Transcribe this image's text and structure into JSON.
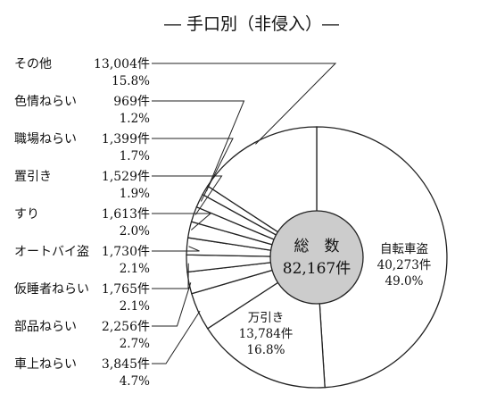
{
  "chart_data": {
    "type": "pie",
    "title": "― 手口別（非侵入）―",
    "center_label": {
      "heading": "総　数",
      "total": "82,167件"
    },
    "slices": [
      {
        "name": "自転車盗",
        "count": "40,273件",
        "percent": "49.0%",
        "value": 49.0
      },
      {
        "name": "万引き",
        "count": "13,784件",
        "percent": "16.8%",
        "value": 16.8
      },
      {
        "name": "車上ねらい",
        "count": "3,845件",
        "percent": "4.7%",
        "value": 4.7
      },
      {
        "name": "部品ねらい",
        "count": "2,256件",
        "percent": "2.7%",
        "value": 2.7
      },
      {
        "name": "仮睡者ねらい",
        "count": "1,765件",
        "percent": "2.1%",
        "value": 2.1
      },
      {
        "name": "オートバイ盗",
        "count": "1,730件",
        "percent": "2.1%",
        "value": 2.1
      },
      {
        "name": "すり",
        "count": "1,613件",
        "percent": "2.0%",
        "value": 2.0
      },
      {
        "name": "置引き",
        "count": "1,529件",
        "percent": "1.9%",
        "value": 1.9
      },
      {
        "name": "職場ねらい",
        "count": "1,399件",
        "percent": "1.7%",
        "value": 1.7
      },
      {
        "name": "色情ねらい",
        "count": "969件",
        "percent": "1.2%",
        "value": 1.2
      },
      {
        "name": "その他",
        "count": "13,004件",
        "percent": "15.8%",
        "value": 15.8
      }
    ],
    "colors": {
      "slice_fill": "#ffffff",
      "outline": "#222222",
      "center_fill": "#cccccc"
    }
  }
}
